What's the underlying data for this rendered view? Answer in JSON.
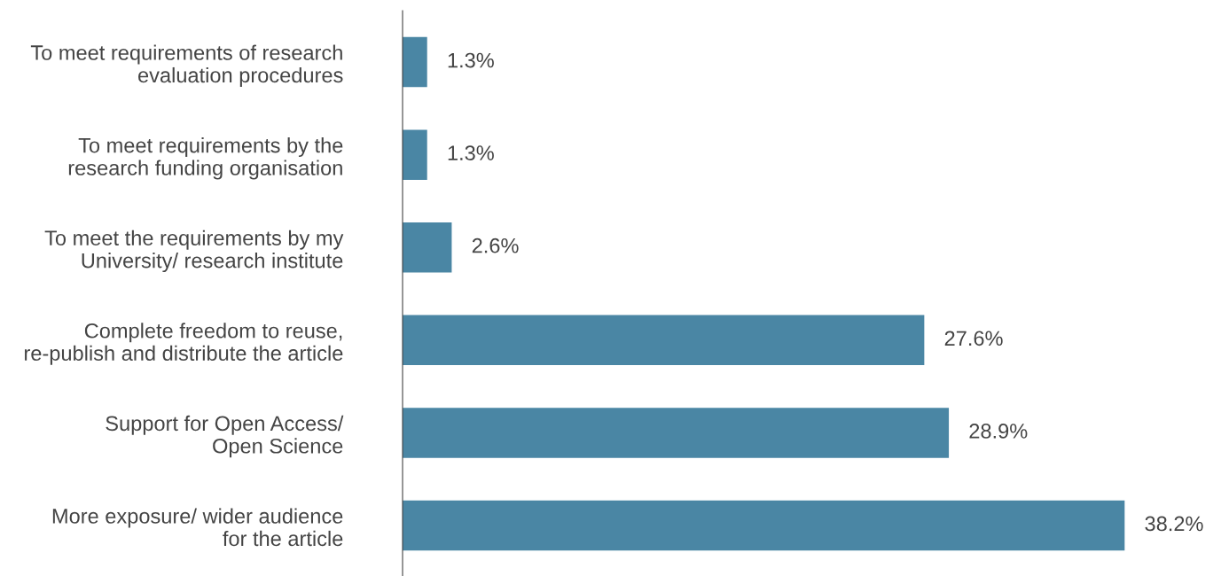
{
  "chart_data": {
    "type": "bar",
    "orientation": "horizontal",
    "categories": [
      "To meet requirements of research\nevaluation procedures",
      "To meet requirements by the\nresearch funding organisation",
      "To meet the requirements by my\nUniversity/ research institute",
      "Complete freedom to reuse,\nre-publish and distribute the article",
      "Support for Open Access/\nOpen Science",
      "More exposure/ wider audience\nfor the article"
    ],
    "values": [
      1.3,
      1.3,
      2.6,
      27.6,
      28.9,
      38.2
    ],
    "value_labels": [
      "1.3%",
      "1.3%",
      "2.6%",
      "27.6%",
      "28.9%",
      "38.2%"
    ],
    "color": "#4a86a4",
    "tick_labels": "y",
    "grid": false,
    "legend": false
  }
}
